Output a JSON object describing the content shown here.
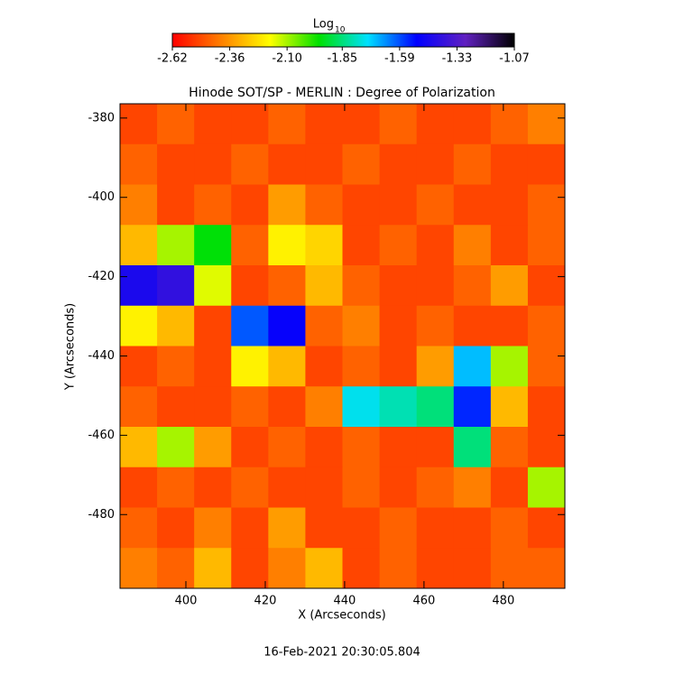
{
  "chart_data": {
    "type": "heatmap",
    "title": "Hinode SOT/SP - MERLIN : Degree of Polarization",
    "x_label": "X (Arcseconds)",
    "y_label": "Y (Arcseconds)",
    "timestamp": "16-Feb-2021 20:30:05.804",
    "xlim": [
      383.4,
      495.5
    ],
    "ylim": [
      -376.4,
      -498.6
    ],
    "xticks": [
      400,
      420,
      440,
      460,
      480
    ],
    "yticks": [
      -380,
      -400,
      -420,
      -440,
      -460,
      -480
    ],
    "colorbar": {
      "label": "Log",
      "label_sub": "10",
      "lim": [
        -2.62,
        -1.07
      ],
      "ticks": [
        -2.62,
        -2.36,
        {
          "value": -2.1,
          "label": "-2.10"
        },
        -1.85,
        -1.59,
        -1.33,
        -1.07
      ],
      "colors": [
        "#ff0000",
        "#ff8000",
        "#ffff00",
        "#00e000",
        "#00e0ff",
        "#0000ff",
        "#6020c0",
        "#000000"
      ]
    },
    "z": [
      [
        -2.5,
        -2.45,
        -2.5,
        -2.5,
        -2.45,
        -2.5,
        -2.5,
        -2.45,
        -2.5,
        -2.5,
        -2.45,
        -2.4
      ],
      [
        -2.45,
        -2.5,
        -2.5,
        -2.45,
        -2.5,
        -2.5,
        -2.45,
        -2.5,
        -2.5,
        -2.45,
        -2.5,
        -2.5
      ],
      [
        -2.4,
        -2.5,
        -2.45,
        -2.5,
        -2.35,
        -2.45,
        -2.5,
        -2.5,
        -2.45,
        -2.5,
        -2.5,
        -2.45
      ],
      [
        -2.3,
        -2.1,
        -1.95,
        -2.45,
        -2.2,
        -2.25,
        -2.5,
        -2.45,
        -2.5,
        -2.4,
        -2.5,
        -2.45
      ],
      [
        -1.45,
        -1.4,
        -2.15,
        -2.5,
        -2.45,
        -2.3,
        -2.45,
        -2.5,
        -2.5,
        -2.45,
        -2.35,
        -2.5
      ],
      [
        -2.2,
        -2.3,
        -2.5,
        -1.6,
        -1.5,
        -2.45,
        -2.4,
        -2.5,
        -2.45,
        -2.5,
        -2.5,
        -2.45
      ],
      [
        -2.5,
        -2.45,
        -2.5,
        -2.2,
        -2.3,
        -2.5,
        -2.45,
        -2.5,
        -2.35,
        -1.7,
        -2.1,
        -2.45
      ],
      [
        -2.45,
        -2.5,
        -2.5,
        -2.45,
        -2.5,
        -2.4,
        -1.75,
        -1.8,
        -1.85,
        -1.55,
        -2.3,
        -2.5
      ],
      [
        -2.3,
        -2.1,
        -2.35,
        -2.5,
        -2.45,
        -2.5,
        -2.45,
        -2.5,
        -2.5,
        -1.85,
        -2.45,
        -2.5
      ],
      [
        -2.5,
        -2.45,
        -2.5,
        -2.45,
        -2.5,
        -2.5,
        -2.45,
        -2.5,
        -2.45,
        -2.4,
        -2.5,
        -2.1
      ],
      [
        -2.45,
        -2.5,
        -2.4,
        -2.5,
        -2.35,
        -2.5,
        -2.5,
        -2.45,
        -2.5,
        -2.5,
        -2.45,
        -2.5
      ],
      [
        -2.4,
        -2.45,
        -2.3,
        -2.5,
        -2.4,
        -2.3,
        -2.5,
        -2.45,
        -2.5,
        -2.5,
        -2.45,
        -2.45
      ]
    ]
  }
}
